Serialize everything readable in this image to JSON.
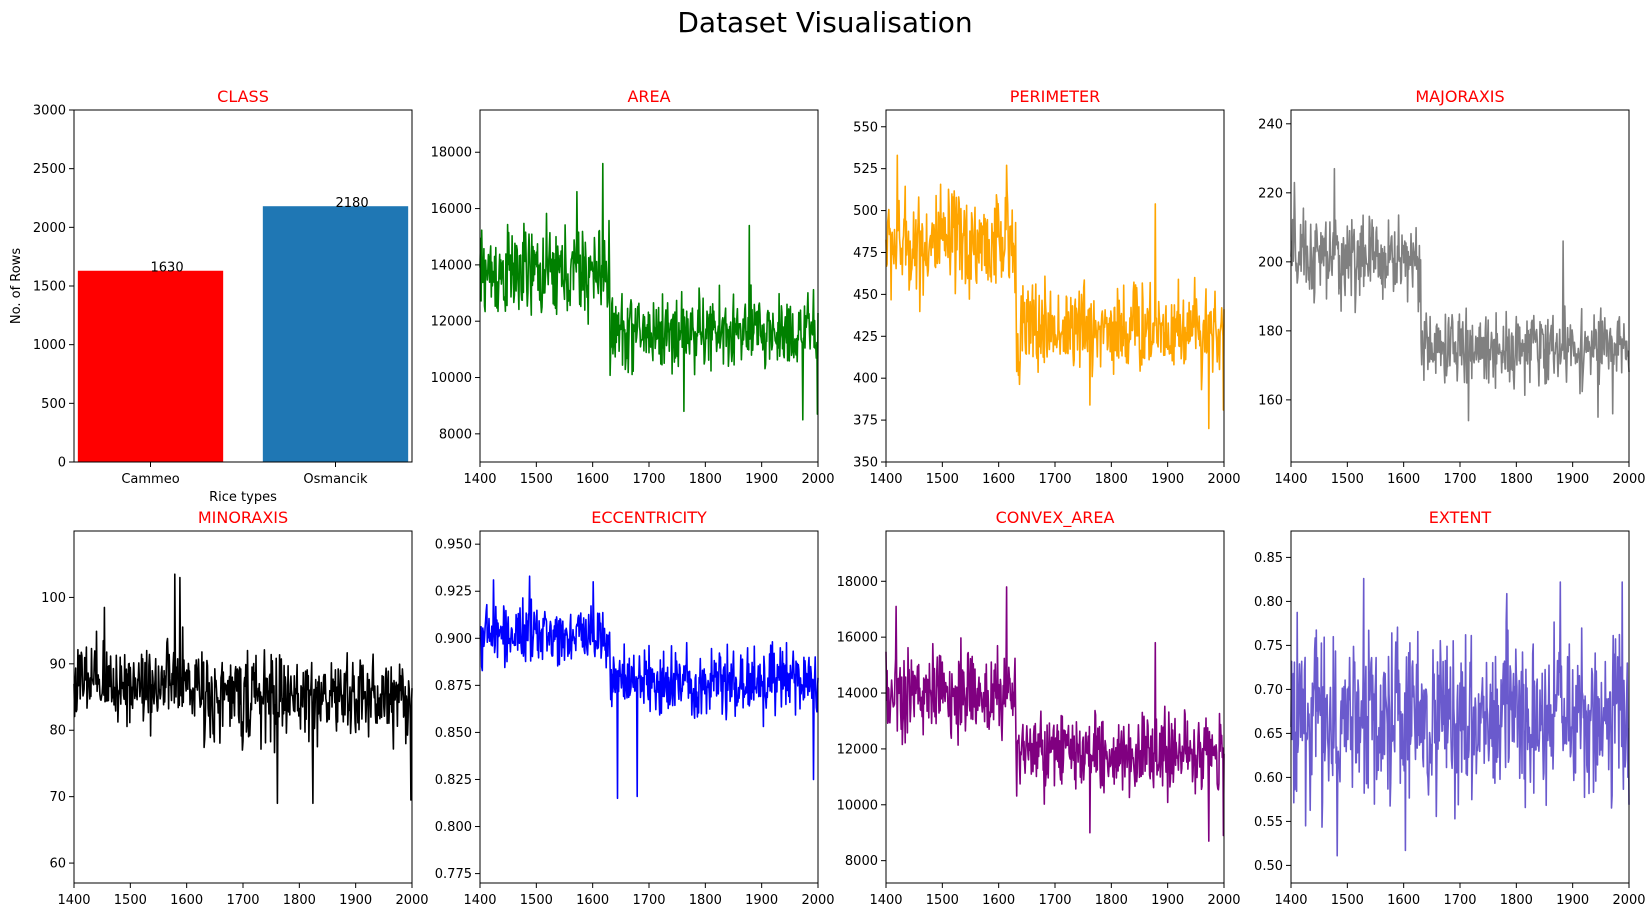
{
  "figure": {
    "title": "Dataset Visualisation"
  },
  "chart_data": [
    {
      "type": "bar",
      "title": "CLASS",
      "title_color": "#ff0000",
      "xlabel": "Rice types",
      "ylabel": "No. of Rows",
      "categories": [
        "Cammeo",
        "Osmancik"
      ],
      "values": [
        1630,
        2180
      ],
      "bar_colors": [
        "#ff0000",
        "#1f77b4"
      ],
      "data_labels": [
        "1630",
        "2180"
      ],
      "ylim": [
        0,
        3000
      ],
      "yticks": [
        0,
        500,
        1000,
        1500,
        2000,
        2500,
        3000
      ],
      "ytick_labels": [
        "0",
        "500",
        "1000",
        "1500",
        "2000",
        "2500",
        "3000"
      ],
      "grid": false
    },
    {
      "type": "line",
      "title": "AREA",
      "title_color": "#ff0000",
      "color": "#008000",
      "xlim": [
        1400,
        2000
      ],
      "ylim": [
        7000,
        19500
      ],
      "xticks": [
        1400,
        1500,
        1600,
        1700,
        1800,
        1900,
        2000
      ],
      "xtick_labels": [
        "1400",
        "1500",
        "1600",
        "1700",
        "1800",
        "1900",
        "2000"
      ],
      "yticks": [
        8000,
        10000,
        12000,
        14000,
        16000,
        18000
      ],
      "ytick_labels": [
        "8000",
        "10000",
        "12000",
        "14000",
        "16000",
        "18000"
      ],
      "segments": [
        {
          "x_start": 1400,
          "x_end": 1630,
          "mean": 13700,
          "spread": 1300
        },
        {
          "x_start": 1630,
          "x_end": 2000,
          "mean": 11600,
          "spread": 1100
        }
      ],
      "peaks": [
        [
          1618,
          17600
        ],
        [
          1878,
          15400
        ],
        [
          1572,
          16600
        ]
      ],
      "troughs": [
        [
          1973,
          8500
        ],
        [
          1999,
          8700
        ],
        [
          1762,
          8800
        ]
      ]
    },
    {
      "type": "line",
      "title": "PERIMETER",
      "title_color": "#ff0000",
      "color": "#ffa500",
      "xlim": [
        1400,
        2000
      ],
      "ylim": [
        350,
        560
      ],
      "xticks": [
        1400,
        1500,
        1600,
        1700,
        1800,
        1900,
        2000
      ],
      "xtick_labels": [
        "1400",
        "1500",
        "1600",
        "1700",
        "1800",
        "1900",
        "2000"
      ],
      "yticks": [
        350,
        375,
        400,
        425,
        450,
        475,
        500,
        525,
        550
      ],
      "ytick_labels": [
        "350",
        "375",
        "400",
        "425",
        "450",
        "475",
        "500",
        "525",
        "550"
      ],
      "segments": [
        {
          "x_start": 1400,
          "x_end": 1630,
          "mean": 480,
          "spread": 25
        },
        {
          "x_start": 1630,
          "x_end": 2000,
          "mean": 430,
          "spread": 22
        }
      ],
      "peaks": [
        [
          1420,
          533
        ],
        [
          1614,
          527
        ],
        [
          1878,
          504
        ]
      ],
      "troughs": [
        [
          1973,
          370
        ],
        [
          1999,
          381
        ],
        [
          1762,
          384
        ]
      ]
    },
    {
      "type": "line",
      "title": "MAJORAXIS",
      "title_color": "#ff0000",
      "color": "#808080",
      "xlim": [
        1400,
        2000
      ],
      "ylim": [
        142,
        244
      ],
      "xticks": [
        1400,
        1500,
        1600,
        1700,
        1800,
        1900,
        2000
      ],
      "xtick_labels": [
        "1400",
        "1500",
        "1600",
        "1700",
        "1800",
        "1900",
        "2000"
      ],
      "yticks": [
        160,
        180,
        200,
        220,
        240
      ],
      "ytick_labels": [
        "160",
        "180",
        "200",
        "220",
        "240"
      ],
      "segments": [
        {
          "x_start": 1400,
          "x_end": 1630,
          "mean": 201,
          "spread": 10
        },
        {
          "x_start": 1630,
          "x_end": 2000,
          "mean": 175,
          "spread": 8
        }
      ],
      "peaks": [
        [
          1477,
          227
        ],
        [
          1406,
          223
        ],
        [
          1883,
          206
        ]
      ],
      "troughs": [
        [
          1715,
          154
        ],
        [
          1945,
          155
        ],
        [
          1971,
          156
        ]
      ]
    },
    {
      "type": "line",
      "title": "MINORAXIS",
      "title_color": "#ff0000",
      "color": "#000000",
      "xlim": [
        1400,
        2000
      ],
      "ylim": [
        57,
        110
      ],
      "xticks": [
        1400,
        1500,
        1600,
        1700,
        1800,
        1900,
        2000
      ],
      "xtick_labels": [
        "1400",
        "1500",
        "1600",
        "1700",
        "1800",
        "1900",
        "2000"
      ],
      "yticks": [
        60,
        70,
        80,
        90,
        100
      ],
      "ytick_labels": [
        "60",
        "70",
        "80",
        "90",
        "100"
      ],
      "segments": [
        {
          "x_start": 1400,
          "x_end": 1630,
          "mean": 87,
          "spread": 5
        },
        {
          "x_start": 1630,
          "x_end": 2000,
          "mean": 85,
          "spread": 5
        }
      ],
      "peaks": [
        [
          1579,
          103.5
        ],
        [
          1588,
          103
        ],
        [
          1454,
          98.5
        ]
      ],
      "troughs": [
        [
          1998,
          69.5
        ],
        [
          1761,
          69
        ],
        [
          1824,
          69
        ]
      ]
    },
    {
      "type": "line",
      "title": "ECCENTRICITY",
      "title_color": "#ff0000",
      "color": "#0000ff",
      "xlim": [
        1400,
        2000
      ],
      "ylim": [
        0.77,
        0.957
      ],
      "xticks": [
        1400,
        1500,
        1600,
        1700,
        1800,
        1900,
        2000
      ],
      "xtick_labels": [
        "1400",
        "1500",
        "1600",
        "1700",
        "1800",
        "1900",
        "2000"
      ],
      "yticks": [
        0.775,
        0.8,
        0.825,
        0.85,
        0.875,
        0.9,
        0.925,
        0.95
      ],
      "ytick_labels": [
        "0.775",
        "0.800",
        "0.825",
        "0.850",
        "0.875",
        "0.900",
        "0.925",
        "0.950"
      ],
      "segments": [
        {
          "x_start": 1400,
          "x_end": 1630,
          "mean": 0.902,
          "spread": 0.012
        },
        {
          "x_start": 1630,
          "x_end": 2000,
          "mean": 0.877,
          "spread": 0.014
        }
      ],
      "peaks": [
        [
          1488,
          0.933
        ],
        [
          1424,
          0.931
        ],
        [
          1601,
          0.93
        ]
      ],
      "troughs": [
        [
          1644,
          0.815
        ],
        [
          1679,
          0.816
        ],
        [
          1992,
          0.825
        ]
      ]
    },
    {
      "type": "line",
      "title": "CONVEX_AREA",
      "title_color": "#ff0000",
      "color": "#800080",
      "xlim": [
        1400,
        2000
      ],
      "ylim": [
        7200,
        19800
      ],
      "xticks": [
        1400,
        1500,
        1600,
        1700,
        1800,
        1900,
        2000
      ],
      "xtick_labels": [
        "1400",
        "1500",
        "1600",
        "1700",
        "1800",
        "1900",
        "2000"
      ],
      "yticks": [
        8000,
        10000,
        12000,
        14000,
        16000,
        18000
      ],
      "ytick_labels": [
        "8000",
        "10000",
        "12000",
        "14000",
        "16000",
        "18000"
      ],
      "segments": [
        {
          "x_start": 1400,
          "x_end": 1630,
          "mean": 14000,
          "spread": 1300
        },
        {
          "x_start": 1630,
          "x_end": 2000,
          "mean": 11800,
          "spread": 1100
        }
      ],
      "peaks": [
        [
          1614,
          17800
        ],
        [
          1418,
          17100
        ],
        [
          1878,
          15800
        ]
      ],
      "troughs": [
        [
          1973,
          8700
        ],
        [
          1999,
          8900
        ],
        [
          1762,
          9000
        ]
      ]
    },
    {
      "type": "line",
      "title": "EXTENT",
      "title_color": "#ff0000",
      "color": "#6a5acd",
      "xlim": [
        1400,
        2000
      ],
      "ylim": [
        0.48,
        0.88
      ],
      "xticks": [
        1400,
        1500,
        1600,
        1700,
        1800,
        1900,
        2000
      ],
      "xtick_labels": [
        "1400",
        "1500",
        "1600",
        "1700",
        "1800",
        "1900",
        "2000"
      ],
      "yticks": [
        0.5,
        0.55,
        0.6,
        0.65,
        0.7,
        0.75,
        0.8,
        0.85
      ],
      "ytick_labels": [
        "0.50",
        "0.55",
        "0.60",
        "0.65",
        "0.70",
        "0.75",
        "0.80",
        "0.85"
      ],
      "segments": [
        {
          "x_start": 1400,
          "x_end": 2000,
          "mean": 0.67,
          "spread": 0.075
        }
      ],
      "peaks": [
        [
          1529,
          0.826
        ],
        [
          1878,
          0.822
        ],
        [
          1988,
          0.822
        ]
      ],
      "troughs": [
        [
          1482,
          0.511
        ],
        [
          1603,
          0.517
        ],
        [
          1426,
          0.545
        ]
      ]
    }
  ]
}
